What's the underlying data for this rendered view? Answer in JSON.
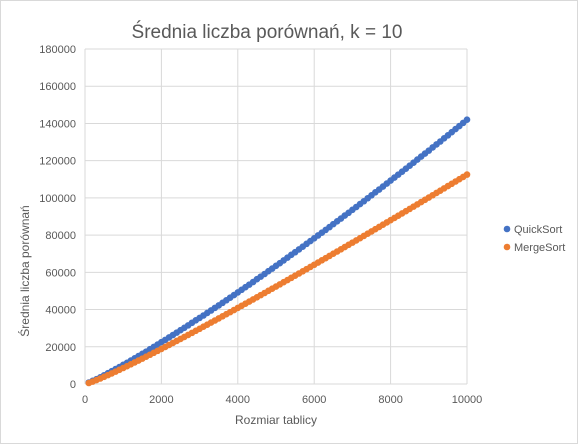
{
  "chart_data": {
    "type": "scatter",
    "title": "Średnia liczba porównań, k = 10",
    "xlabel": "Rozmiar tablicy",
    "ylabel": "Średnia liczba porównań",
    "xlim": [
      0,
      10000
    ],
    "ylim": [
      0,
      180000
    ],
    "xticks": [
      0,
      2000,
      4000,
      6000,
      8000,
      10000
    ],
    "yticks": [
      0,
      20000,
      40000,
      60000,
      80000,
      100000,
      120000,
      140000,
      160000,
      180000
    ],
    "grid": "vertical and horizontal",
    "legend": "right",
    "series": [
      {
        "name": "QuickSort",
        "color": "#4472c4",
        "x": [
          100,
          200,
          300,
          400,
          500,
          600,
          700,
          800,
          900,
          1000,
          1100,
          1200,
          1300,
          1400,
          1500,
          1600,
          1700,
          1800,
          1900,
          2000,
          2100,
          2200,
          2300,
          2400,
          2500,
          2600,
          2700,
          2800,
          2900,
          3000,
          3100,
          3200,
          3300,
          3400,
          3500,
          3600,
          3700,
          3800,
          3900,
          4000,
          4100,
          4200,
          4300,
          4400,
          4500,
          4600,
          4700,
          4800,
          4900,
          5000,
          5100,
          5200,
          5300,
          5400,
          5500,
          5600,
          5700,
          5800,
          5900,
          6000,
          6100,
          6200,
          6300,
          6400,
          6500,
          6600,
          6700,
          6800,
          6900,
          7000,
          7100,
          7200,
          7300,
          7400,
          7500,
          7600,
          7700,
          7800,
          7900,
          8000,
          8100,
          8200,
          8300,
          8400,
          8500,
          8600,
          8700,
          8800,
          8900,
          9000,
          9100,
          9200,
          9300,
          9400,
          9500,
          9600,
          9700,
          9800,
          9900,
          10000
        ],
        "values": [
          800,
          1700,
          2600,
          3600,
          4700,
          5800,
          6900,
          8000,
          9100,
          10300,
          11400,
          12600,
          13800,
          15000,
          16200,
          17400,
          18700,
          19900,
          21200,
          22500,
          23700,
          25000,
          26300,
          27600,
          28900,
          30200,
          31500,
          32900,
          34200,
          35500,
          36800,
          38200,
          39500,
          40900,
          42200,
          43600,
          45000,
          46400,
          47800,
          49200,
          50600,
          52000,
          53400,
          54800,
          56300,
          57700,
          59100,
          60600,
          62000,
          63500,
          64900,
          66400,
          67900,
          69400,
          70800,
          72300,
          73800,
          75300,
          76800,
          78300,
          79800,
          81300,
          82800,
          84300,
          85900,
          87400,
          88900,
          90500,
          92000,
          93600,
          95100,
          96700,
          98200,
          99800,
          101400,
          103000,
          104500,
          106100,
          107700,
          109300,
          110900,
          112500,
          114100,
          115700,
          117300,
          118900,
          120600,
          122200,
          123800,
          125400,
          127100,
          128700,
          130300,
          132000,
          133600,
          135300,
          137000,
          138600,
          140300,
          142000
        ]
      },
      {
        "name": "MergeSort",
        "color": "#ed7d31",
        "x": [
          100,
          200,
          300,
          400,
          500,
          600,
          700,
          800,
          900,
          1000,
          1100,
          1200,
          1300,
          1400,
          1500,
          1600,
          1700,
          1800,
          1900,
          2000,
          2100,
          2200,
          2300,
          2400,
          2500,
          2600,
          2700,
          2800,
          2900,
          3000,
          3100,
          3200,
          3300,
          3400,
          3500,
          3600,
          3700,
          3800,
          3900,
          4000,
          4100,
          4200,
          4300,
          4400,
          4500,
          4600,
          4700,
          4800,
          4900,
          5000,
          5100,
          5200,
          5300,
          5400,
          5500,
          5600,
          5700,
          5800,
          5900,
          6000,
          6100,
          6200,
          6300,
          6400,
          6500,
          6600,
          6700,
          6800,
          6900,
          7000,
          7100,
          7200,
          7300,
          7400,
          7500,
          7600,
          7700,
          7800,
          7900,
          8000,
          8100,
          8200,
          8300,
          8400,
          8500,
          8600,
          8700,
          8800,
          8900,
          9000,
          9100,
          9200,
          9300,
          9400,
          9500,
          9600,
          9700,
          9800,
          9900,
          10000
        ],
        "values": [
          540,
          1280,
          2100,
          2950,
          3850,
          4770,
          5700,
          6650,
          7620,
          8600,
          9590,
          10590,
          11600,
          12620,
          13640,
          14670,
          15710,
          16750,
          17800,
          18850,
          19910,
          20980,
          22050,
          23120,
          24200,
          25290,
          26380,
          27470,
          28570,
          29670,
          30780,
          31890,
          33000,
          34120,
          35240,
          36360,
          37490,
          38620,
          39750,
          40880,
          42020,
          43160,
          44300,
          45450,
          46600,
          47750,
          48900,
          50050,
          51210,
          52370,
          53530,
          54690,
          55860,
          57030,
          58200,
          59370,
          60540,
          61720,
          62900,
          64080,
          65260,
          66440,
          67620,
          68810,
          70000,
          71190,
          72380,
          73570,
          74770,
          75960,
          77160,
          78360,
          79560,
          80760,
          81970,
          83170,
          84380,
          85590,
          86800,
          88010,
          89220,
          90430,
          91650,
          92870,
          94080,
          95300,
          96520,
          97750,
          98970,
          100190,
          101420,
          102650,
          103880,
          105110,
          106340,
          107570,
          108800,
          110040,
          111270,
          112510
        ]
      }
    ]
  }
}
